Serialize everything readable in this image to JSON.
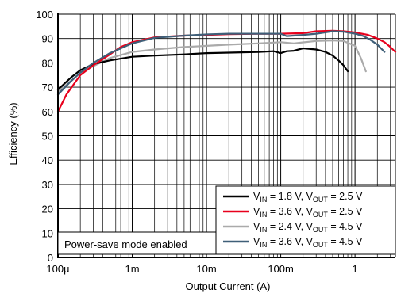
{
  "chart_data": {
    "type": "line",
    "title": "",
    "xlabel": "Output Current (A)",
    "ylabel": "Efficiency (%)",
    "x_scale": "log",
    "xlim": [
      0.0001,
      3.5
    ],
    "ylim": [
      0,
      100
    ],
    "grid": true,
    "legend_position": "bottom-right",
    "annotation": "Power-save mode enabled",
    "x_ticks": [
      {
        "value": 0.0001,
        "label": "100µ"
      },
      {
        "value": 0.001,
        "label": "1m"
      },
      {
        "value": 0.01,
        "label": "10m"
      },
      {
        "value": 0.1,
        "label": "100m"
      },
      {
        "value": 1,
        "label": "1"
      }
    ],
    "y_ticks": [
      0,
      10,
      20,
      30,
      40,
      50,
      60,
      70,
      80,
      90,
      100
    ],
    "series": [
      {
        "name": "V_IN = 1.8 V, V_OUT = 2.5 V",
        "legend": {
          "a": "V",
          "a_sub": "IN",
          "b": " = 1.8 V, V",
          "b_sub": "OUT",
          "c": " = 2.5 V"
        },
        "color": "#000000",
        "x": [
          0.0001,
          0.00015,
          0.0002,
          0.0003,
          0.0005,
          0.001,
          0.002,
          0.005,
          0.01,
          0.02,
          0.05,
          0.08,
          0.1,
          0.12,
          0.15,
          0.2,
          0.3,
          0.4,
          0.5,
          0.6,
          0.7,
          0.8
        ],
        "y": [
          69,
          74,
          77,
          79.5,
          81,
          82.5,
          83,
          83.5,
          84,
          84.2,
          84.5,
          84.8,
          84,
          84.8,
          85,
          86,
          85.5,
          84.5,
          83,
          81,
          79,
          76.5
        ]
      },
      {
        "name": "V_IN = 3.6 V, V_OUT = 2.5 V",
        "legend": {
          "a": "V",
          "a_sub": "IN",
          "b": " = 3.6 V, V",
          "b_sub": "OUT",
          "c": " = 2.5 V"
        },
        "color": "#e8001c",
        "x": [
          0.0001,
          0.00013,
          0.00017,
          0.0002,
          0.0003,
          0.0005,
          0.0007,
          0.001,
          0.002,
          0.005,
          0.01,
          0.02,
          0.05,
          0.1,
          0.2,
          0.3,
          0.5,
          0.7,
          1,
          1.5,
          2,
          2.5,
          3,
          3.5
        ],
        "y": [
          60,
          67,
          72,
          75,
          79,
          83.5,
          86.5,
          88.5,
          90.5,
          91.2,
          91.5,
          91.8,
          92,
          92,
          92.2,
          93,
          93.2,
          93,
          92.5,
          91.5,
          90,
          88.5,
          86.5,
          84.5
        ]
      },
      {
        "name": "V_IN = 2.4 V, V_OUT = 4.5 V",
        "legend": {
          "a": "V",
          "a_sub": "IN",
          "b": " = 2.4 V, V",
          "b_sub": "OUT",
          "c": " = 4.5 V"
        },
        "color": "#aaaaaa",
        "x": [
          0.0001,
          0.0002,
          0.0005,
          0.001,
          0.002,
          0.005,
          0.01,
          0.02,
          0.05,
          0.1,
          0.15,
          0.3,
          0.5,
          0.7,
          1,
          1.2,
          1.4
        ],
        "y": [
          68,
          76,
          82,
          84.5,
          85.5,
          86.5,
          87,
          87.5,
          88,
          88.5,
          88,
          89,
          89.2,
          89,
          87,
          82,
          76.5
        ]
      },
      {
        "name": "V_IN = 3.6 V, V_OUT = 4.5 V",
        "legend": {
          "a": "V",
          "a_sub": "IN",
          "b": " = 3.6 V, V",
          "b_sub": "OUT",
          "c": " = 4.5 V"
        },
        "color": "#3f5f78",
        "x": [
          0.0001,
          0.00015,
          0.0002,
          0.0003,
          0.0005,
          0.001,
          0.002,
          0.005,
          0.01,
          0.02,
          0.05,
          0.1,
          0.12,
          0.2,
          0.3,
          0.5,
          0.7,
          1,
          1.3,
          1.6,
          2,
          2.5
        ],
        "y": [
          67,
          72.5,
          76,
          80,
          84,
          88,
          90.3,
          91.2,
          91.7,
          92,
          92,
          92,
          91,
          91.5,
          92,
          93,
          92.8,
          92,
          91,
          89.5,
          87.5,
          84.5
        ]
      }
    ]
  }
}
